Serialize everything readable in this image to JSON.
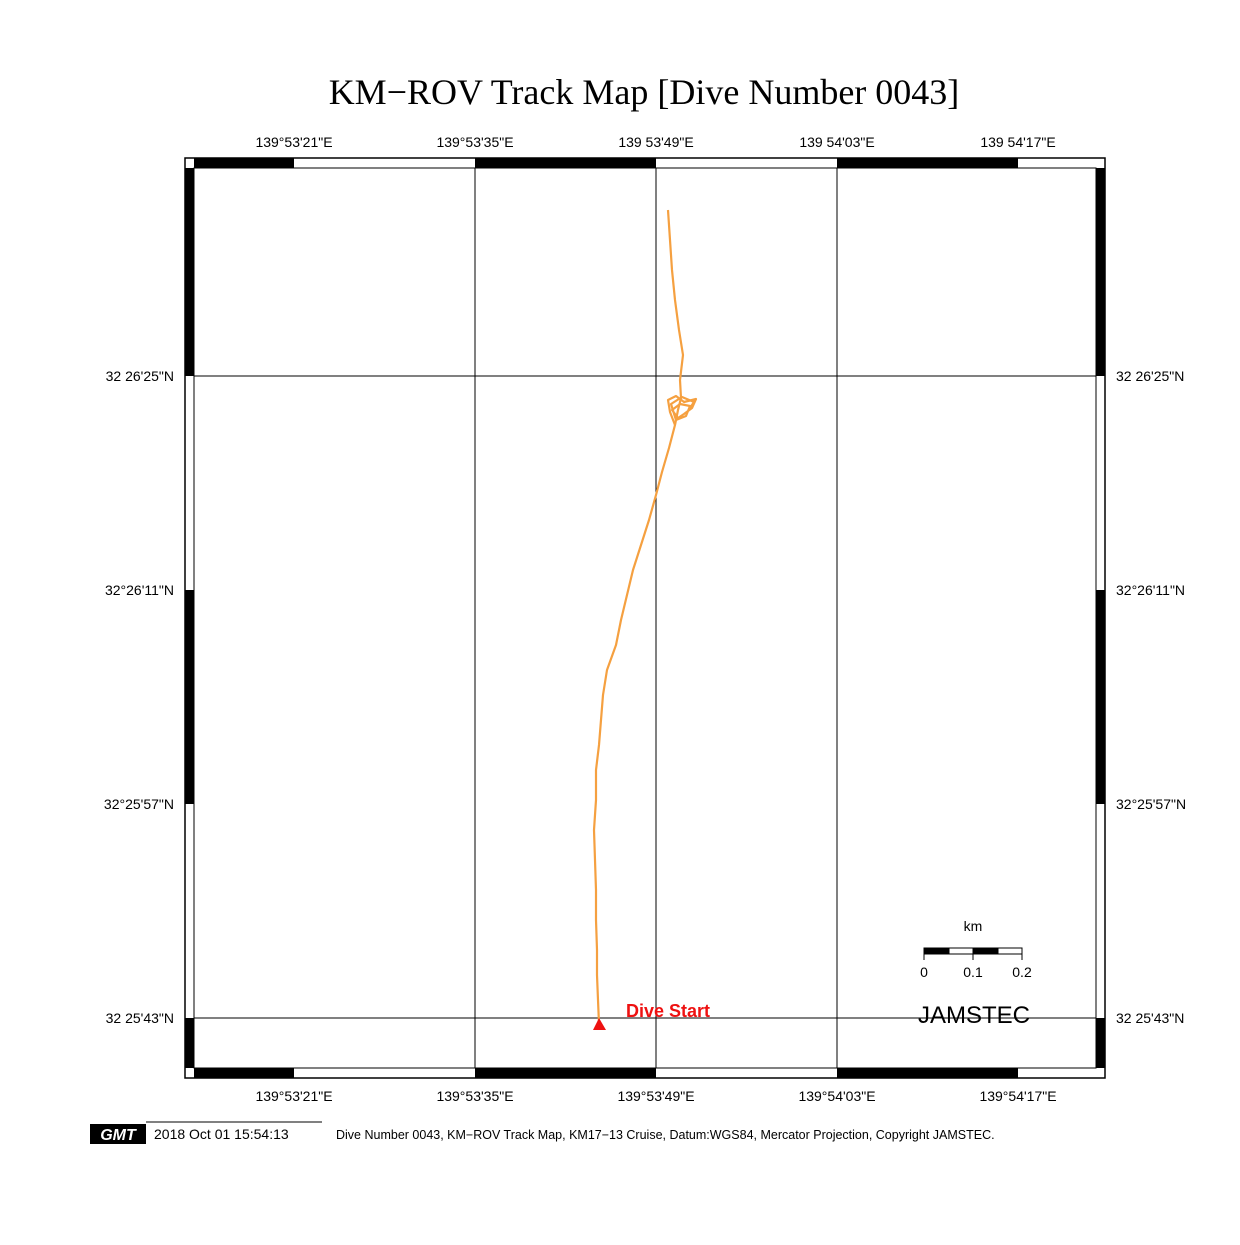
{
  "title": "KM−ROV Track Map [Dive Number 0043]",
  "top_lon_labels": [
    "139°53'21\"E",
    "139°53'35\"E",
    "139 53'49\"E",
    "139 54'03\"E",
    "139 54'17\"E"
  ],
  "bottom_lon_labels": [
    "139°53'21\"E",
    "139°53'35\"E",
    "139°53'49\"E",
    "139°54'03\"E",
    "139°54'17\"E"
  ],
  "left_lat_labels": [
    "32 26'25\"N",
    "32°26'11\"N",
    "32°25'57\"N",
    "32 25'43\"N"
  ],
  "right_lat_labels": [
    "32 26'25\"N",
    "32°26'11\"N",
    "32°25'57\"N",
    "32 25'43\"N"
  ],
  "dive_start_label": "Dive Start",
  "scale_bar": {
    "unit": "km",
    "ticks": [
      "0",
      "0.1",
      "0.2"
    ]
  },
  "org_label": "JAMSTEC",
  "footer": {
    "logo_text": "GMT",
    "timestamp": "2018 Oct 01 15:54:13",
    "caption": "Dive Number 0043, KM−ROV Track Map, KM17−13 Cruise, Datum:WGS84, Mercator Projection, Copyright JAMSTEC."
  },
  "colors": {
    "track": "#f5a040",
    "dive_start": "#ee1111",
    "frame": "#000000"
  }
}
